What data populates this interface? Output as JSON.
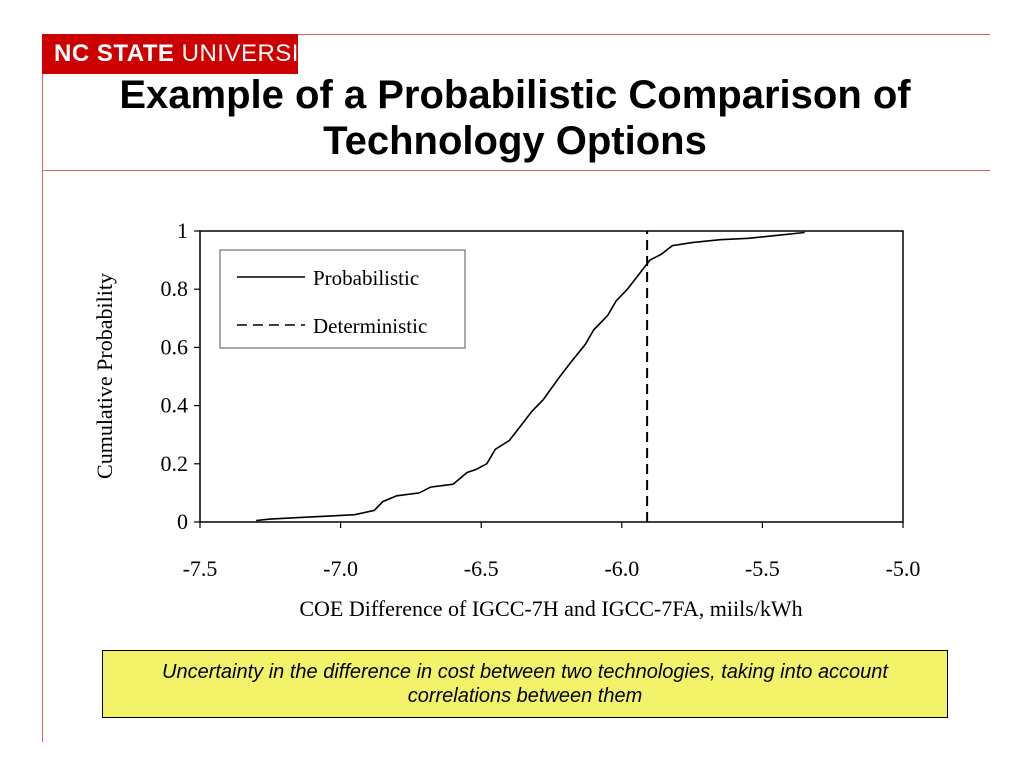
{
  "header": {
    "brand_bold": "NC STATE",
    "brand_light": "UNIVERSITY",
    "brand_color": "#cc0000",
    "accent_line_color": "#e06060"
  },
  "slide": {
    "title": "Example of a Probabilistic Comparison of Technology Options",
    "caption": "Uncertainty in the difference in cost between two technologies, taking into account correlations between them",
    "caption_bg": "#f3f36a"
  },
  "chart_data": {
    "type": "line",
    "xlabel": "COE Difference of IGCC-7H and IGCC-7FA, miils/kWh",
    "ylabel": "Cumulative Probability",
    "xlim": [
      -7.5,
      -5.0
    ],
    "ylim": [
      0,
      1
    ],
    "x_ticks": [
      "-7.5",
      "-7.0",
      "-6.5",
      "-6.0",
      "-5.5",
      "-5.0"
    ],
    "y_ticks": [
      "0",
      "0.2",
      "0.4",
      "0.6",
      "0.8",
      "1"
    ],
    "grid": false,
    "legend_position": "top-left",
    "series": [
      {
        "name": "Probabilistic",
        "style": "solid",
        "points": [
          [
            -7.3,
            0.005
          ],
          [
            -7.25,
            0.01
          ],
          [
            -7.15,
            0.015
          ],
          [
            -7.05,
            0.02
          ],
          [
            -6.95,
            0.025
          ],
          [
            -6.88,
            0.04
          ],
          [
            -6.85,
            0.07
          ],
          [
            -6.8,
            0.09
          ],
          [
            -6.72,
            0.1
          ],
          [
            -6.68,
            0.12
          ],
          [
            -6.6,
            0.13
          ],
          [
            -6.55,
            0.17
          ],
          [
            -6.52,
            0.18
          ],
          [
            -6.48,
            0.2
          ],
          [
            -6.45,
            0.25
          ],
          [
            -6.4,
            0.28
          ],
          [
            -6.36,
            0.33
          ],
          [
            -6.32,
            0.38
          ],
          [
            -6.28,
            0.42
          ],
          [
            -6.25,
            0.46
          ],
          [
            -6.22,
            0.5
          ],
          [
            -6.18,
            0.55
          ],
          [
            -6.13,
            0.61
          ],
          [
            -6.1,
            0.66
          ],
          [
            -6.05,
            0.71
          ],
          [
            -6.02,
            0.76
          ],
          [
            -5.98,
            0.8
          ],
          [
            -5.94,
            0.85
          ],
          [
            -5.9,
            0.9
          ],
          [
            -5.86,
            0.92
          ],
          [
            -5.82,
            0.95
          ],
          [
            -5.75,
            0.96
          ],
          [
            -5.65,
            0.97
          ],
          [
            -5.55,
            0.975
          ],
          [
            -5.45,
            0.985
          ],
          [
            -5.35,
            0.995
          ]
        ]
      },
      {
        "name": "Deterministic",
        "style": "dashed",
        "points": [
          [
            -5.91,
            0
          ],
          [
            -5.91,
            1
          ]
        ]
      }
    ]
  }
}
